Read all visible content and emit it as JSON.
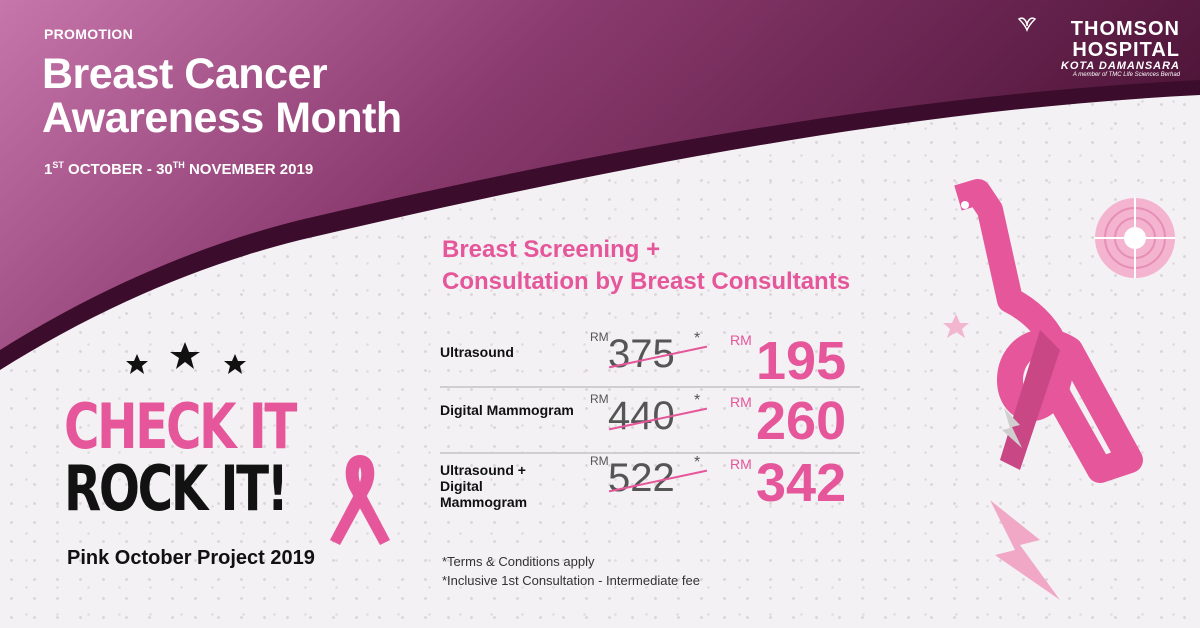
{
  "header": {
    "promo_label": "PROMOTION",
    "title_line1": "Breast Cancer",
    "title_line2": "Awareness Month",
    "date_start_day": "1",
    "date_start_suffix": "ST",
    "date_mid": " OCTOBER - 30",
    "date_end_suffix": "TH",
    "date_end": " NOVEMBER 2019"
  },
  "logo": {
    "line1": "THOMSON",
    "line2": "HOSPITAL",
    "line3": "KOTA DAMANSARA",
    "line4": "A member of TMC Life Sciences Berhad"
  },
  "campaign": {
    "check_word1": "CHECK",
    "check_word2": "IT",
    "rock_word1": "ROCK",
    "rock_word2": "IT!",
    "subtitle": "Pink October Project 2019"
  },
  "offer": {
    "title_line1": "Breast Screening +",
    "title_line2": "Consultation by Breast Consultants",
    "currency": "RM",
    "rows": [
      {
        "label": "Ultrasound",
        "old_price": "375",
        "new_price": "195"
      },
      {
        "label": "Digital Mammogram",
        "old_price": "440",
        "new_price": "260"
      },
      {
        "label": "Ultrasound + Digital Mammogram",
        "old_price": "522",
        "new_price": "342"
      }
    ],
    "asterisk": "*"
  },
  "footnotes": {
    "line1": "*Terms & Conditions apply",
    "line2": "*Inclusive 1st Consultation - Intermediate fee"
  },
  "colors": {
    "brand_pink": "#e5569a",
    "header_purple_dark": "#5a1a44",
    "header_purple_light": "#c06a9e"
  }
}
